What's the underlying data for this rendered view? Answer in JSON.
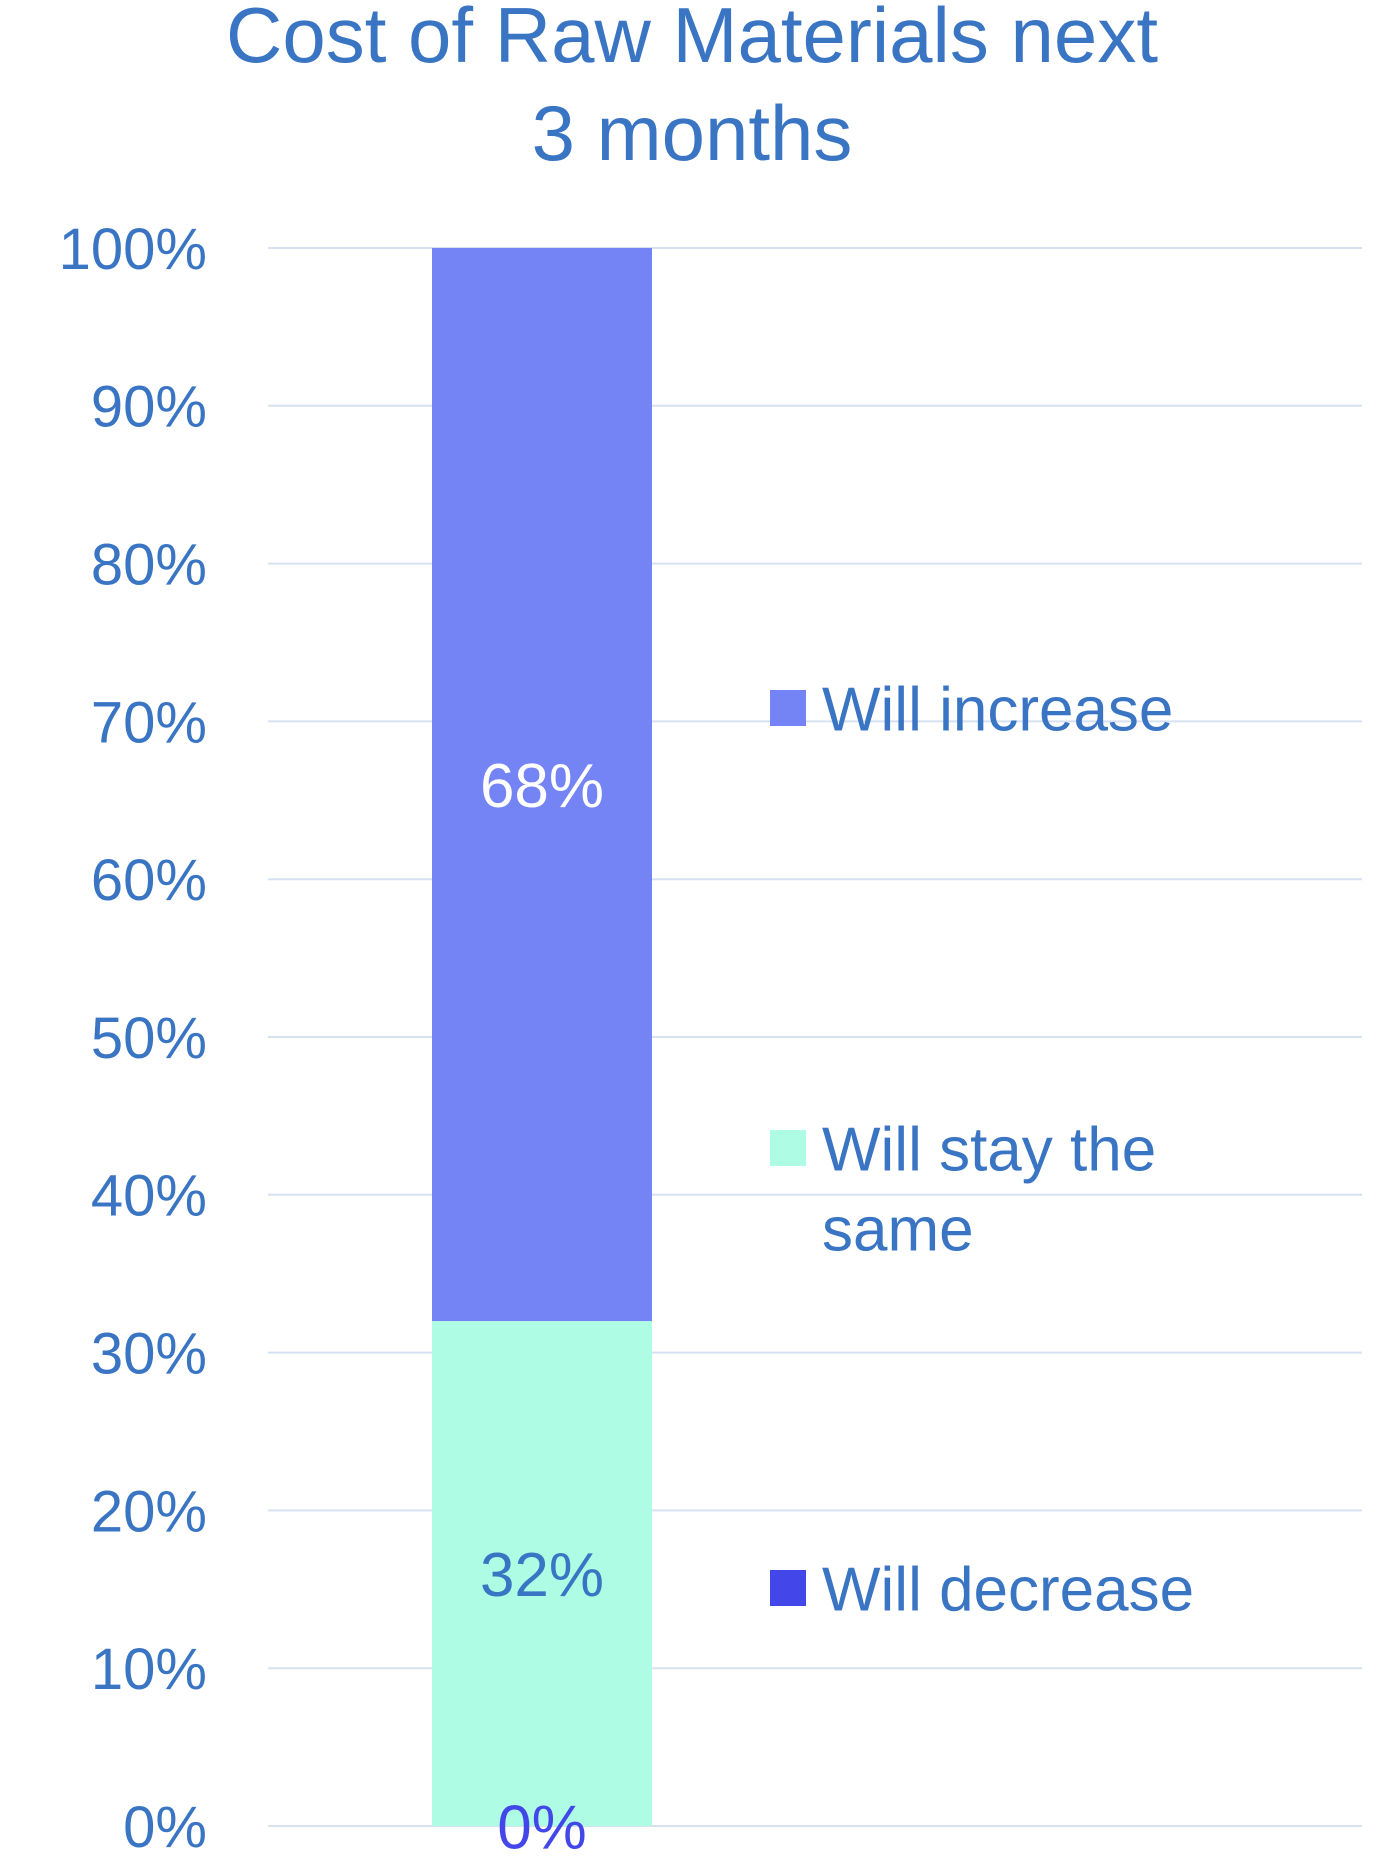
{
  "chart_data": {
    "type": "bar",
    "stacked": true,
    "title_lines": [
      "Cost of Raw Materials next",
      "3 months"
    ],
    "categories": [
      ""
    ],
    "series": [
      {
        "name": "Will decrease",
        "values": [
          0
        ],
        "label": "0%",
        "color": "#4346e8"
      },
      {
        "name": "Will stay the same",
        "values": [
          32
        ],
        "label": "32%",
        "color": "#adfce3"
      },
      {
        "name": "Will increase",
        "values": [
          68
        ],
        "label": "68%",
        "color": "#7484f5"
      }
    ],
    "legend_order": [
      "Will increase",
      "Will stay the same",
      "Will decrease"
    ],
    "legend_position": "right",
    "yticks": [
      "0%",
      "10%",
      "20%",
      "30%",
      "40%",
      "50%",
      "60%",
      "70%",
      "80%",
      "90%",
      "100%"
    ],
    "ylim": [
      0,
      100
    ],
    "grid": true,
    "colors": {
      "text": "#3a75c4",
      "grid": "#d6e2f1",
      "label_light": "#ffffff",
      "label_dark": "#3a75c4",
      "label_zero": "#4346e8"
    }
  }
}
